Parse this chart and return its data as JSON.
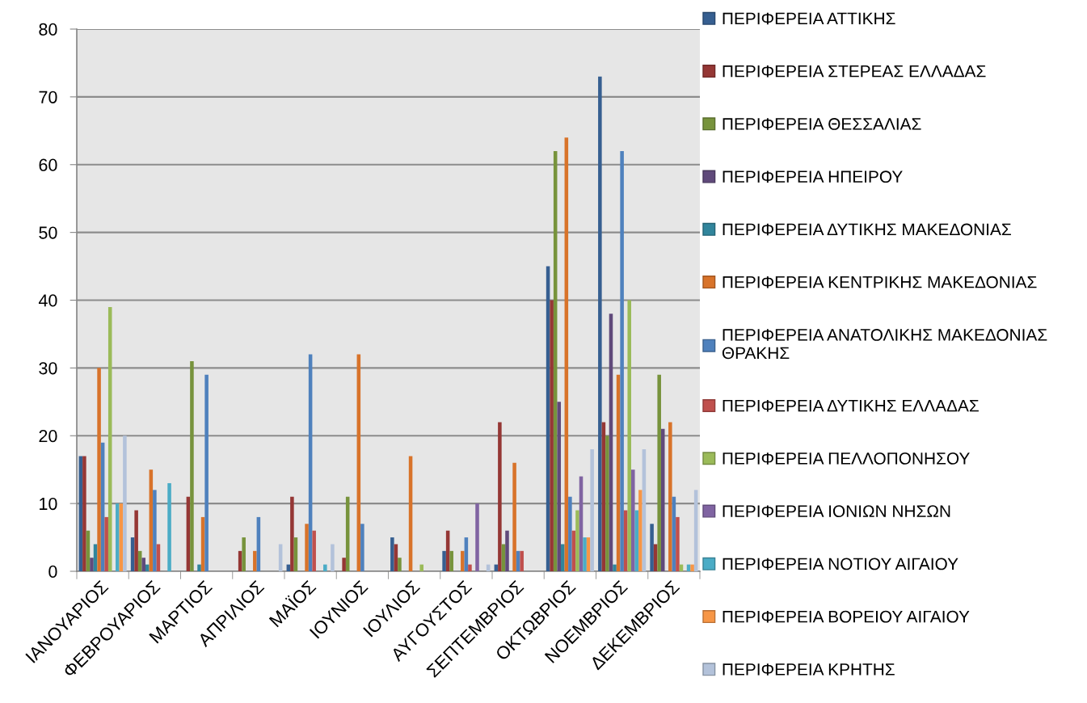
{
  "chart_data": {
    "type": "bar",
    "categories": [
      "ΙΑΝΟΥΑΡΙΟΣ",
      "ΦΕΒΡΟΥΑΡΙΟΣ",
      "ΜΑΡΤΙΟΣ",
      "ΑΠΡΙΛΙΟΣ",
      "ΜΑΪΟΣ",
      "ΙΟΥΝΙΟΣ",
      "ΙΟΥΛΙΟΣ",
      "ΑΥΓΟΥΣΤΟΣ",
      "ΣΕΠΤΕΜΒΡΙΟΣ",
      "ΟΚΤΩΒΡΙΟΣ",
      "ΝΟΕΜΒΡΙΟΣ",
      "ΔΕΚΕΜΒΡΙΟΣ"
    ],
    "series": [
      {
        "name": "ΠΕΡΙΦΕΡΕΙΑ ΑΤΤΙΚΗΣ",
        "color": "#365f91",
        "values": [
          17,
          5,
          null,
          null,
          1,
          null,
          5,
          3,
          1,
          45,
          73,
          7
        ]
      },
      {
        "name": "ΠΕΡΙΦΕΡΕΙΑ ΣΤΕΡΕΑΣ ΕΛΛΑΔΑΣ",
        "color": "#953735",
        "values": [
          17,
          9,
          11,
          3,
          11,
          2,
          4,
          6,
          22,
          40,
          22,
          4
        ]
      },
      {
        "name": "ΠΕΡΙΦΕΡΕΙΑ ΘΕΣΣΑΛΙΑΣ",
        "color": "#77933c",
        "values": [
          6,
          3,
          31,
          5,
          5,
          11,
          2,
          3,
          4,
          62,
          20,
          29
        ]
      },
      {
        "name": "ΠΕΡΙΦΕΡΕΙΑ ΗΠΕΙΡΟΥ",
        "color": "#604a7b",
        "values": [
          2,
          2,
          null,
          null,
          null,
          null,
          null,
          null,
          6,
          25,
          38,
          21
        ]
      },
      {
        "name": "ΠΕΡΙΦΕΡΕΙΑ ΔΥΤΙΚΗΣ ΜΑΚΕΔΟΝΙΑΣ",
        "color": "#31859c",
        "values": [
          4,
          1,
          1,
          null,
          null,
          null,
          null,
          null,
          null,
          4,
          1,
          null
        ]
      },
      {
        "name": "ΠΕΡΙΦΕΡΕΙΑ ΚΕΝΤΡΙΚΗΣ ΜΑΚΕΔΟΝΙΑΣ",
        "color": "#d8732a",
        "values": [
          30,
          15,
          8,
          3,
          7,
          32,
          17,
          3,
          16,
          64,
          29,
          22
        ]
      },
      {
        "name": "ΠΕΡΙΦΕΡΕΙΑ ΑΝΑΤΟΛΙΚΗΣ ΜΑΚΕΔΟΝΙΑΣ ΘΡΑΚΗΣ",
        "color": "#4f81bd",
        "values": [
          19,
          12,
          29,
          8,
          32,
          7,
          null,
          5,
          3,
          11,
          62,
          11
        ]
      },
      {
        "name": "ΠΕΡΙΦΕΡΕΙΑ ΔΥΤΙΚΗΣ ΕΛΛΑΔΑΣ",
        "color": "#c0504d",
        "values": [
          8,
          4,
          null,
          null,
          6,
          null,
          null,
          1,
          3,
          6,
          9,
          8
        ]
      },
      {
        "name": "ΠΕΡΙΦΕΡΕΙΑ ΠΕΛΛΟΠΟΝΗΣΟΥ",
        "color": "#9bbb59",
        "values": [
          39,
          null,
          null,
          null,
          null,
          null,
          1,
          null,
          null,
          9,
          40,
          1
        ]
      },
      {
        "name": "ΠΕΡΙΦΕΡΕΙΑ ΙΟΝΙΩΝ ΝΗΣΩΝ",
        "color": "#8064a2",
        "values": [
          null,
          null,
          null,
          null,
          null,
          null,
          null,
          10,
          null,
          14,
          15,
          null
        ]
      },
      {
        "name": "ΠΕΡΙΦΕΡΕΙΑ ΝΟΤΙΟΥ ΑΙΓΑΙΟΥ",
        "color": "#4bacc6",
        "values": [
          10,
          13,
          null,
          null,
          1,
          null,
          null,
          null,
          null,
          5,
          9,
          1
        ]
      },
      {
        "name": "ΠΕΡΙΦΕΡΕΙΑ ΒΟΡΕΙΟΥ ΑΙΓΑΙΟΥ",
        "color": "#f79646",
        "values": [
          10,
          null,
          null,
          null,
          null,
          null,
          null,
          null,
          null,
          5,
          12,
          1
        ]
      },
      {
        "name": "ΠΕΡΙΦΕΡΕΙΑ ΚΡΗΤΗΣ",
        "color": "#b3c2da",
        "values": [
          20,
          null,
          null,
          4,
          4,
          null,
          null,
          1,
          null,
          18,
          18,
          12
        ]
      }
    ],
    "ylim": [
      0,
      80
    ],
    "yticks": [
      0,
      10,
      20,
      30,
      40,
      50,
      60,
      70,
      80
    ],
    "grid": "y",
    "legend": "right"
  }
}
